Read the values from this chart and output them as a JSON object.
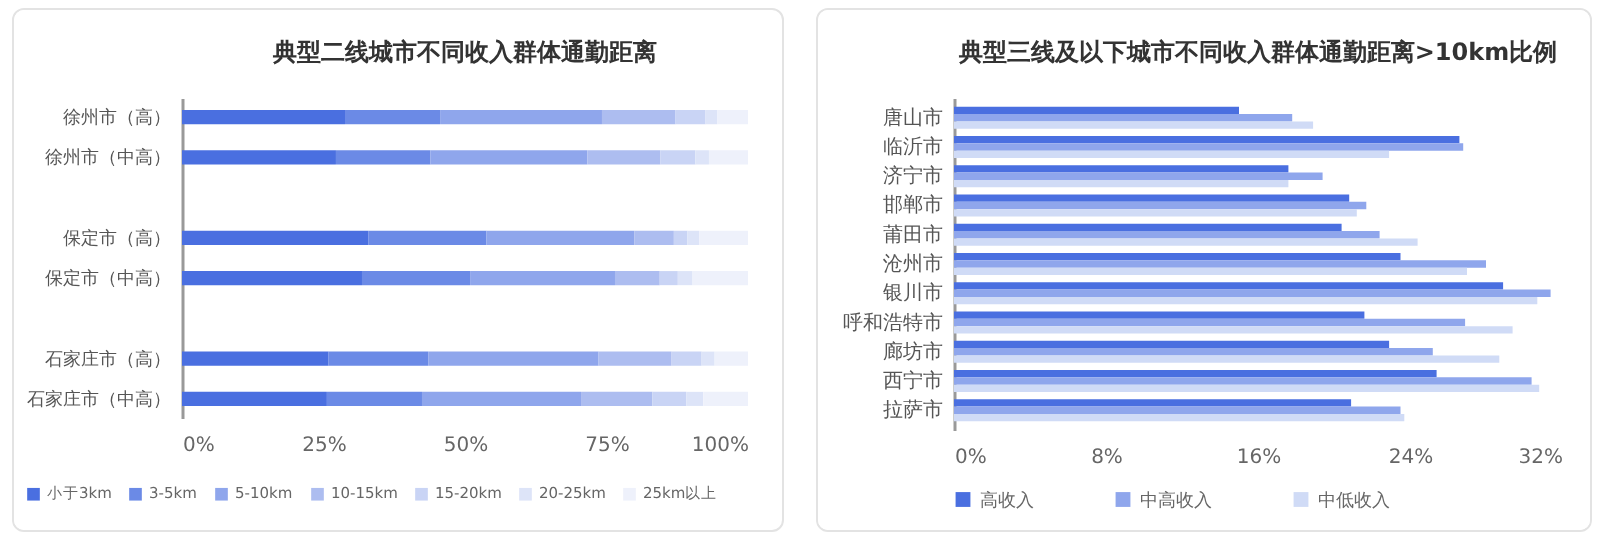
{
  "chart_data": [
    {
      "type": "bar",
      "title": "典型二线城市不同收入群体通勤距离",
      "orientation": "horizontal",
      "stacked": true,
      "legend": "bottom",
      "categories": [
        "徐州市（高）",
        "徐州市（中高）",
        null,
        "保定市（高）",
        "保定市（中高）",
        null,
        "石家庄市（高）",
        "石家庄市（中高）"
      ],
      "xlim": [
        0,
        100
      ],
      "xticks": [
        {
          "value": 0,
          "label": "0%"
        },
        {
          "value": 25,
          "label": "25%"
        },
        {
          "value": 50,
          "label": "50%"
        },
        {
          "value": 75,
          "label": "75%"
        },
        {
          "value": 100,
          "label": "100%"
        }
      ],
      "series": [
        {
          "name": "小于3km",
          "color": "#4a6fe0",
          "values": [
            28.8,
            27.2,
            null,
            32.9,
            31.8,
            null,
            25.9,
            25.6
          ]
        },
        {
          "name": "3-5km",
          "color": "#6b8ae6",
          "values": [
            16.8,
            16.7,
            null,
            20.9,
            19.1,
            null,
            17.6,
            16.8
          ]
        },
        {
          "name": "5-10km",
          "color": "#8fa6ec",
          "values": [
            28.6,
            27.7,
            null,
            26.1,
            25.6,
            null,
            30.1,
            28.1
          ]
        },
        {
          "name": "10-15km",
          "color": "#adbdf0",
          "values": [
            13.0,
            12.9,
            null,
            7.0,
            7.9,
            null,
            12.9,
            12.6
          ]
        },
        {
          "name": "15-20km",
          "color": "#c9d4f5",
          "values": [
            5.3,
            6.2,
            null,
            2.4,
            3.2,
            null,
            5.3,
            6.0
          ]
        },
        {
          "name": "20-25km",
          "color": "#dde4f8",
          "values": [
            2.1,
            2.4,
            null,
            2.1,
            2.6,
            null,
            2.3,
            3.0
          ]
        },
        {
          "name": "25km以上",
          "color": "#eef1fb",
          "values": [
            5.4,
            6.9,
            null,
            8.6,
            9.8,
            null,
            5.9,
            7.9
          ]
        }
      ]
    },
    {
      "type": "bar",
      "title": "典型三线及以下城市不同收入群体通勤距离>10km比例",
      "orientation": "horizontal",
      "legend": "bottom",
      "categories": [
        "唐山市",
        "临沂市",
        "济宁市",
        "邯郸市",
        "莆田市",
        "沧州市",
        "银川市",
        "呼和浩特市",
        "廊坊市",
        "西宁市",
        "拉萨市"
      ],
      "xlim": [
        0,
        32
      ],
      "xticks": [
        {
          "value": 0,
          "label": "0%"
        },
        {
          "value": 8,
          "label": "8%"
        },
        {
          "value": 16,
          "label": "16%"
        },
        {
          "value": 24,
          "label": "24%"
        },
        {
          "value": 32,
          "label": "32%"
        }
      ],
      "series": [
        {
          "name": "高收入",
          "color": "#4a6fe0",
          "values": [
            15.0,
            26.6,
            17.6,
            20.8,
            20.4,
            23.5,
            28.9,
            21.6,
            22.9,
            25.4,
            20.9
          ]
        },
        {
          "name": "中高收入",
          "color": "#8fa6ec",
          "values": [
            17.8,
            26.8,
            19.4,
            21.7,
            22.4,
            28.0,
            31.4,
            26.9,
            25.2,
            30.4,
            23.5
          ]
        },
        {
          "name": "中低收入",
          "color": "#d0dbf6",
          "values": [
            18.9,
            22.9,
            17.6,
            21.2,
            24.4,
            27.0,
            30.7,
            29.4,
            28.7,
            30.8,
            23.7
          ]
        }
      ]
    }
  ]
}
